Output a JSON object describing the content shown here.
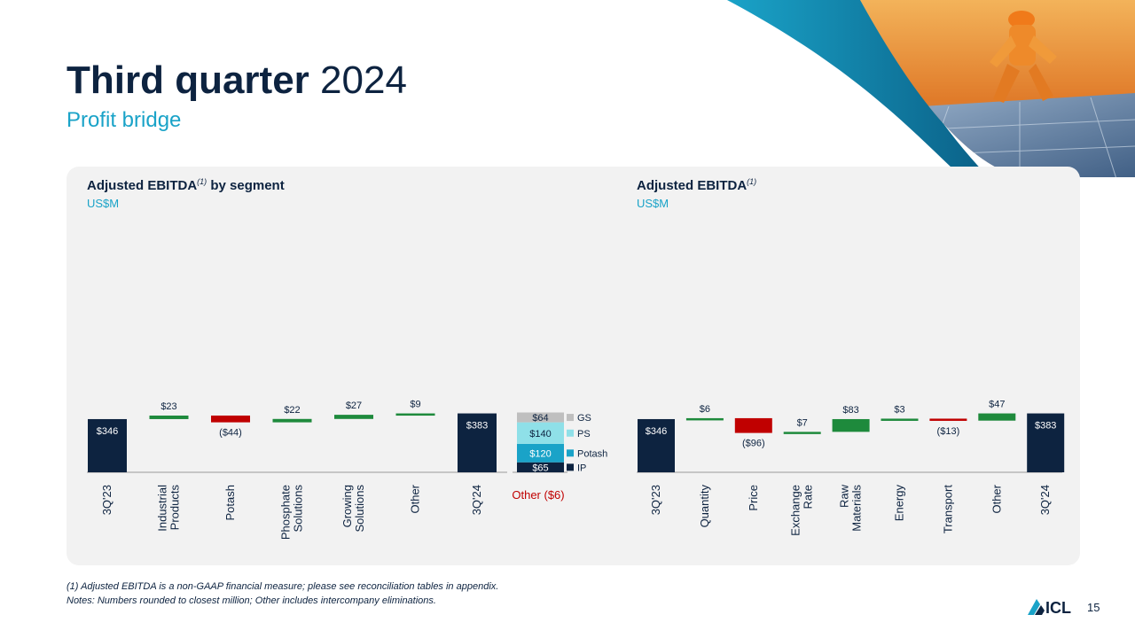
{
  "slide": {
    "title_bold": "Third quarter",
    "title_year": "2024",
    "subtitle": "Profit bridge",
    "page_number": "15",
    "brand": "ICL"
  },
  "colors": {
    "navy": "#0d2340",
    "accent": "#1aa3c8",
    "increase": "#1e8a3c",
    "decrease": "#c00000",
    "panel": "#f2f2f2",
    "gs": "#bfbfbf",
    "ps": "#8fe0e8",
    "potash": "#1aa3c8",
    "ip": "#0d2340"
  },
  "charts": {
    "left": {
      "heading": "Adjusted EBITDA",
      "footnote_mark": "(1)",
      "heading_suffix": " by segment",
      "unit": "US$M"
    },
    "right": {
      "heading": "Adjusted EBITDA",
      "footnote_mark": "(1)",
      "unit": "US$M"
    }
  },
  "chart_data": [
    {
      "type": "waterfall",
      "title": "Adjusted EBITDA(1) by segment",
      "unit": "US$M",
      "categories": [
        "3Q'23",
        "Industrial Products",
        "Potash",
        "Phosphate Solutions",
        "Growing Solutions",
        "Other",
        "3Q'24"
      ],
      "tick_lines": [
        [
          "3Q'23"
        ],
        [
          "Industrial",
          "Products"
        ],
        [
          "Potash"
        ],
        [
          "Phosphate",
          "Solutions"
        ],
        [
          "Growing",
          "Solutions"
        ],
        [
          "Other"
        ],
        [
          "3Q'24"
        ]
      ],
      "values": [
        346,
        23,
        -44,
        22,
        27,
        9,
        383
      ],
      "labels": [
        "$346",
        "$23",
        "($44)",
        "$22",
        "$27",
        "$9",
        "$383"
      ],
      "kinds": [
        "total",
        "delta",
        "delta",
        "delta",
        "delta",
        "delta",
        "total"
      ],
      "stacked_breakdown": {
        "segments": [
          {
            "name": "IP",
            "value": 65,
            "label": "$65"
          },
          {
            "name": "Potash",
            "value": 120,
            "label": "$120"
          },
          {
            "name": "PS",
            "value": 140,
            "label": "$140"
          },
          {
            "name": "GS",
            "value": 64,
            "label": "$64"
          }
        ],
        "note": "Other ($6)"
      }
    },
    {
      "type": "waterfall",
      "title": "Adjusted EBITDA(1)",
      "unit": "US$M",
      "categories": [
        "3Q'23",
        "Quantity",
        "Price",
        "Exchange Rate",
        "Raw Materials",
        "Energy",
        "Transport",
        "Other",
        "3Q'24"
      ],
      "tick_lines": [
        [
          "3Q'23"
        ],
        [
          "Quantity"
        ],
        [
          "Price"
        ],
        [
          "Exchange",
          "Rate"
        ],
        [
          "Raw",
          "Materials"
        ],
        [
          "Energy"
        ],
        [
          "Transport"
        ],
        [
          "Other"
        ],
        [
          "3Q'24"
        ]
      ],
      "values": [
        346,
        6,
        -96,
        7,
        83,
        3,
        -13,
        47,
        383
      ],
      "labels": [
        "$346",
        "$6",
        "($96)",
        "$7",
        "$83",
        "$3",
        "($13)",
        "$47",
        "$383"
      ],
      "kinds": [
        "total",
        "delta",
        "delta",
        "delta",
        "delta",
        "delta",
        "delta",
        "delta",
        "total"
      ]
    }
  ],
  "footnotes": [
    "(1) Adjusted EBITDA is a non-GAAP financial measure; please see reconciliation tables in appendix.",
    "Notes: Numbers rounded to closest million; Other includes intercompany eliminations."
  ]
}
